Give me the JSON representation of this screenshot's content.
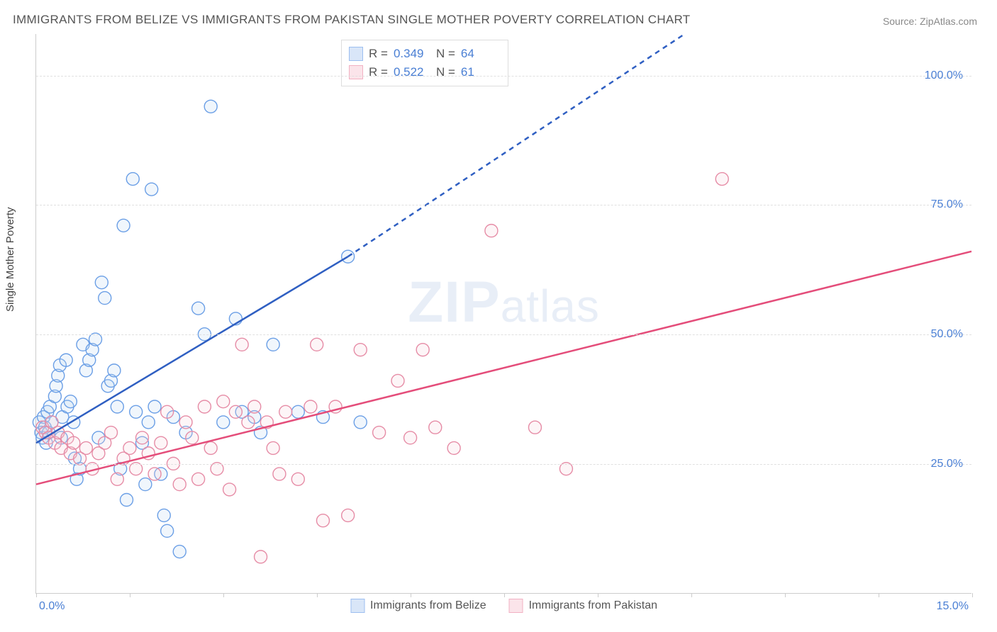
{
  "title": "IMMIGRANTS FROM BELIZE VS IMMIGRANTS FROM PAKISTAN SINGLE MOTHER POVERTY CORRELATION CHART",
  "source_label": "Source: ",
  "source_name": "ZipAtlas.com",
  "ylabel": "Single Mother Poverty",
  "watermark_a": "ZIP",
  "watermark_b": "atlas",
  "chart": {
    "type": "scatter-with-regression",
    "xlim": [
      0,
      15
    ],
    "ylim": [
      0,
      108
    ],
    "x_ticklabels": {
      "min": "0.0%",
      "max": "15.0%"
    },
    "y_gridlines": [
      25,
      50,
      75,
      100
    ],
    "y_ticklabels": [
      "25.0%",
      "50.0%",
      "75.0%",
      "100.0%"
    ],
    "x_minor_ticks": [
      0,
      1.5,
      3.0,
      4.5,
      6.0,
      7.5,
      9.0,
      10.5,
      12.0,
      13.5,
      15.0
    ],
    "background_color": "#ffffff",
    "grid_color": "#e0e0e0",
    "axis_color": "#cccccc",
    "tick_label_color": "#4a7fd4",
    "marker_radius": 9,
    "marker_stroke_width": 1.4,
    "marker_fill_opacity": 0.22,
    "series": [
      {
        "id": "belize",
        "label": "Immigrants from Belize",
        "color_stroke": "#6b9fe6",
        "color_fill": "#bcd4f2",
        "swatch_fill": "#d9e6f8",
        "swatch_border": "#9cbef0",
        "R": "0.349",
        "N": "64",
        "regression": {
          "x1": 0,
          "y1": 29,
          "x2_solid": 5.0,
          "y2_solid": 65,
          "x2_dash": 10.4,
          "y2_dash": 108,
          "color": "#2f5fc2",
          "width": 2.5,
          "dash": "7,6"
        },
        "points": [
          [
            0.05,
            33
          ],
          [
            0.08,
            31
          ],
          [
            0.1,
            30
          ],
          [
            0.12,
            34
          ],
          [
            0.14,
            32
          ],
          [
            0.16,
            29
          ],
          [
            0.18,
            35
          ],
          [
            0.2,
            31
          ],
          [
            0.22,
            36
          ],
          [
            0.25,
            33
          ],
          [
            0.3,
            38
          ],
          [
            0.32,
            40
          ],
          [
            0.35,
            42
          ],
          [
            0.38,
            44
          ],
          [
            0.4,
            30
          ],
          [
            0.42,
            34
          ],
          [
            0.48,
            45
          ],
          [
            0.5,
            36
          ],
          [
            0.55,
            37
          ],
          [
            0.6,
            33
          ],
          [
            0.62,
            26
          ],
          [
            0.65,
            22
          ],
          [
            0.7,
            24
          ],
          [
            0.75,
            48
          ],
          [
            0.8,
            43
          ],
          [
            0.85,
            45
          ],
          [
            0.9,
            47
          ],
          [
            0.95,
            49
          ],
          [
            1.0,
            30
          ],
          [
            1.05,
            60
          ],
          [
            1.1,
            57
          ],
          [
            1.15,
            40
          ],
          [
            1.2,
            41
          ],
          [
            1.25,
            43
          ],
          [
            1.3,
            36
          ],
          [
            1.35,
            24
          ],
          [
            1.4,
            71
          ],
          [
            1.45,
            18
          ],
          [
            1.55,
            80
          ],
          [
            1.6,
            35
          ],
          [
            1.7,
            29
          ],
          [
            1.75,
            21
          ],
          [
            1.8,
            33
          ],
          [
            1.85,
            78
          ],
          [
            1.9,
            36
          ],
          [
            2.0,
            23
          ],
          [
            2.05,
            15
          ],
          [
            2.1,
            12
          ],
          [
            2.2,
            34
          ],
          [
            2.3,
            8
          ],
          [
            2.4,
            31
          ],
          [
            2.6,
            55
          ],
          [
            2.7,
            50
          ],
          [
            2.8,
            94
          ],
          [
            3.0,
            33
          ],
          [
            3.2,
            53
          ],
          [
            3.3,
            35
          ],
          [
            3.5,
            34
          ],
          [
            3.6,
            31
          ],
          [
            3.8,
            48
          ],
          [
            4.2,
            35
          ],
          [
            4.6,
            34
          ],
          [
            5.0,
            65
          ],
          [
            5.2,
            33
          ]
        ]
      },
      {
        "id": "pakistan",
        "label": "Immigrants from Pakistan",
        "color_stroke": "#e68ca6",
        "color_fill": "#f6d1db",
        "swatch_fill": "#fbe4ea",
        "swatch_border": "#f2b1c3",
        "R": "0.522",
        "N": "61",
        "regression": {
          "x1": 0,
          "y1": 21,
          "x2_solid": 15,
          "y2_solid": 66,
          "x2_dash": 15,
          "y2_dash": 66,
          "color": "#e44d7a",
          "width": 2.5,
          "dash": ""
        },
        "points": [
          [
            0.1,
            32
          ],
          [
            0.15,
            31
          ],
          [
            0.2,
            30
          ],
          [
            0.25,
            33
          ],
          [
            0.3,
            29
          ],
          [
            0.35,
            31
          ],
          [
            0.4,
            28
          ],
          [
            0.5,
            30
          ],
          [
            0.55,
            27
          ],
          [
            0.6,
            29
          ],
          [
            0.7,
            26
          ],
          [
            0.8,
            28
          ],
          [
            0.9,
            24
          ],
          [
            1.0,
            27
          ],
          [
            1.1,
            29
          ],
          [
            1.2,
            31
          ],
          [
            1.3,
            22
          ],
          [
            1.4,
            26
          ],
          [
            1.5,
            28
          ],
          [
            1.6,
            24
          ],
          [
            1.7,
            30
          ],
          [
            1.8,
            27
          ],
          [
            1.9,
            23
          ],
          [
            2.0,
            29
          ],
          [
            2.1,
            35
          ],
          [
            2.2,
            25
          ],
          [
            2.3,
            21
          ],
          [
            2.4,
            33
          ],
          [
            2.5,
            30
          ],
          [
            2.6,
            22
          ],
          [
            2.7,
            36
          ],
          [
            2.8,
            28
          ],
          [
            2.9,
            24
          ],
          [
            3.0,
            37
          ],
          [
            3.1,
            20
          ],
          [
            3.2,
            35
          ],
          [
            3.3,
            48
          ],
          [
            3.4,
            33
          ],
          [
            3.5,
            36
          ],
          [
            3.6,
            7
          ],
          [
            3.7,
            33
          ],
          [
            3.8,
            28
          ],
          [
            3.9,
            23
          ],
          [
            4.0,
            35
          ],
          [
            4.2,
            22
          ],
          [
            4.4,
            36
          ],
          [
            4.5,
            48
          ],
          [
            4.6,
            14
          ],
          [
            4.8,
            36
          ],
          [
            5.0,
            15
          ],
          [
            5.2,
            47
          ],
          [
            5.5,
            31
          ],
          [
            5.8,
            41
          ],
          [
            6.2,
            47
          ],
          [
            6.4,
            32
          ],
          [
            6.7,
            28
          ],
          [
            7.3,
            70
          ],
          [
            8.0,
            32
          ],
          [
            8.5,
            24
          ],
          [
            11.0,
            80
          ],
          [
            6.0,
            30
          ]
        ]
      }
    ],
    "stats_box": {
      "prefix_R": "R = ",
      "prefix_N": "N = "
    },
    "legend_position": "top-center",
    "bottom_legend": true
  }
}
